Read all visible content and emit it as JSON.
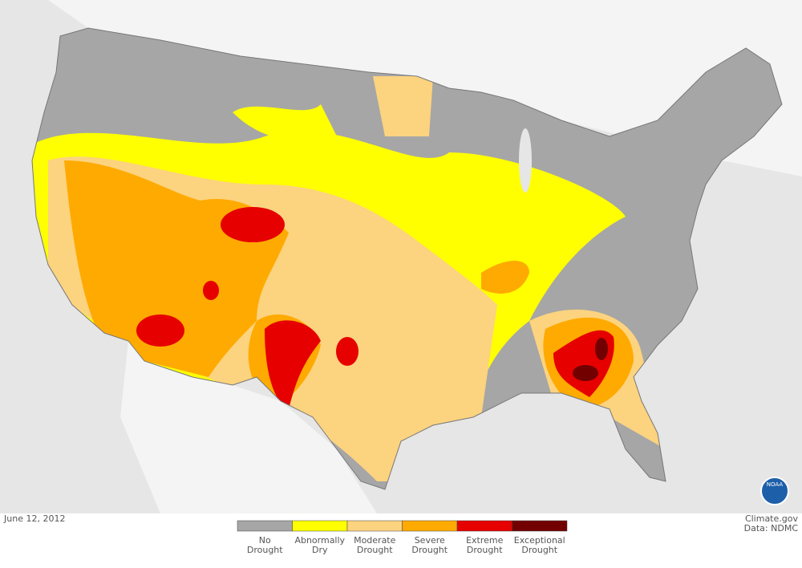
{
  "date": "June 12, 2012",
  "credit": [
    "Climate.gov",
    "Data: NDMC"
  ],
  "logo": "NOAA",
  "legend": {
    "items": [
      {
        "label": [
          "No",
          "Drought"
        ],
        "color": "#a6a6a6"
      },
      {
        "label": [
          "Abnormally",
          "Dry"
        ],
        "color": "#ffff00"
      },
      {
        "label": [
          "Moderate",
          "Drought"
        ],
        "color": "#fcd37f"
      },
      {
        "label": [
          "Severe",
          "Drought"
        ],
        "color": "#ffaa00"
      },
      {
        "label": [
          "Extreme",
          "Drought"
        ],
        "color": "#e60000"
      },
      {
        "label": [
          "Exceptional",
          "Drought"
        ],
        "color": "#730000"
      }
    ]
  }
}
